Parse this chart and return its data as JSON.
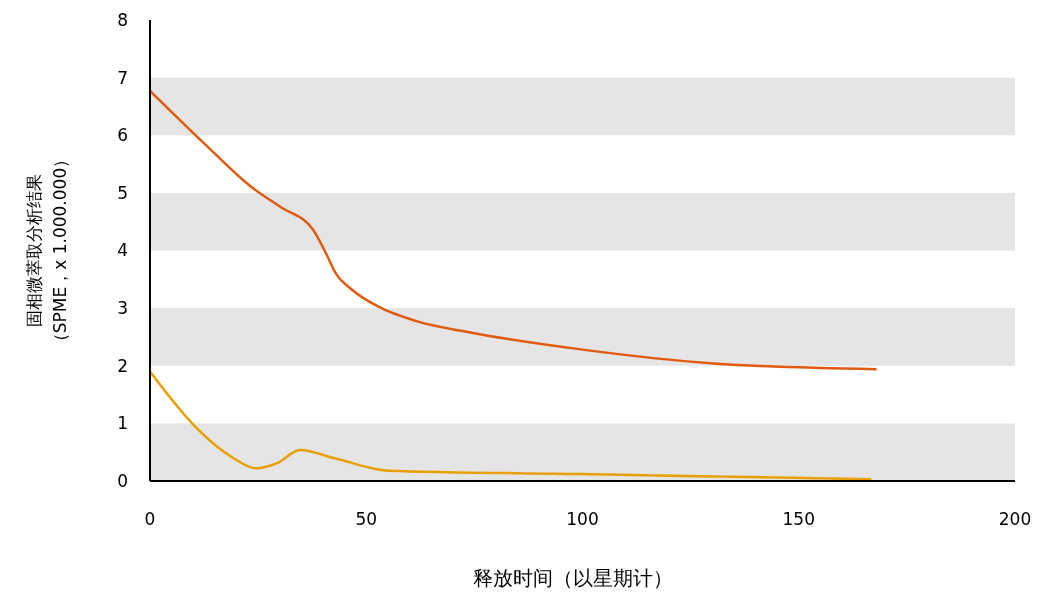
{
  "chart_data": {
    "type": "line",
    "xlabel": "释放时间（以星期计）",
    "ylabel": "固相微萃取分析结果（SPME，x 1.000.000）",
    "xlim": [
      0,
      200
    ],
    "xticks": [
      0,
      50,
      100,
      150,
      200
    ],
    "ylim": [
      0,
      8
    ],
    "yticks": [
      0,
      1,
      2,
      3,
      4,
      5,
      6,
      7,
      8
    ],
    "bands": [
      {
        "axis": "y",
        "from": 0,
        "to": 1,
        "color": "#e5e5e5"
      },
      {
        "axis": "y",
        "from": 2,
        "to": 3,
        "color": "#e5e5e5"
      },
      {
        "axis": "y",
        "from": 4,
        "to": 5,
        "color": "#e5e5e5"
      },
      {
        "axis": "y",
        "from": 6,
        "to": 7,
        "color": "#e5e5e5"
      }
    ],
    "marker": "none",
    "line_style": "solid",
    "series": [
      {
        "color": "#e05a10",
        "x": [
          0,
          13.6,
          23.3,
          30.1,
          37.7,
          40.7,
          42.9,
          46.7,
          52.7,
          61.8,
          73.1,
          100,
          130.3,
          168
        ],
        "values": [
          6.77,
          5.78,
          5.11,
          4.76,
          4.36,
          3.95,
          3.61,
          3.32,
          3.03,
          2.77,
          2.59,
          2.28,
          2.04,
          1.94
        ]
      },
      {
        "color": "#e8a000",
        "x": [
          0,
          10.5,
          18.8,
          24.5,
          29.4,
          34.7,
          42.9,
          55,
          99.4,
          166.8
        ],
        "values": [
          1.9,
          0.94,
          0.42,
          0.22,
          0.31,
          0.54,
          0.39,
          0.18,
          0.12,
          0.03
        ]
      }
    ]
  }
}
